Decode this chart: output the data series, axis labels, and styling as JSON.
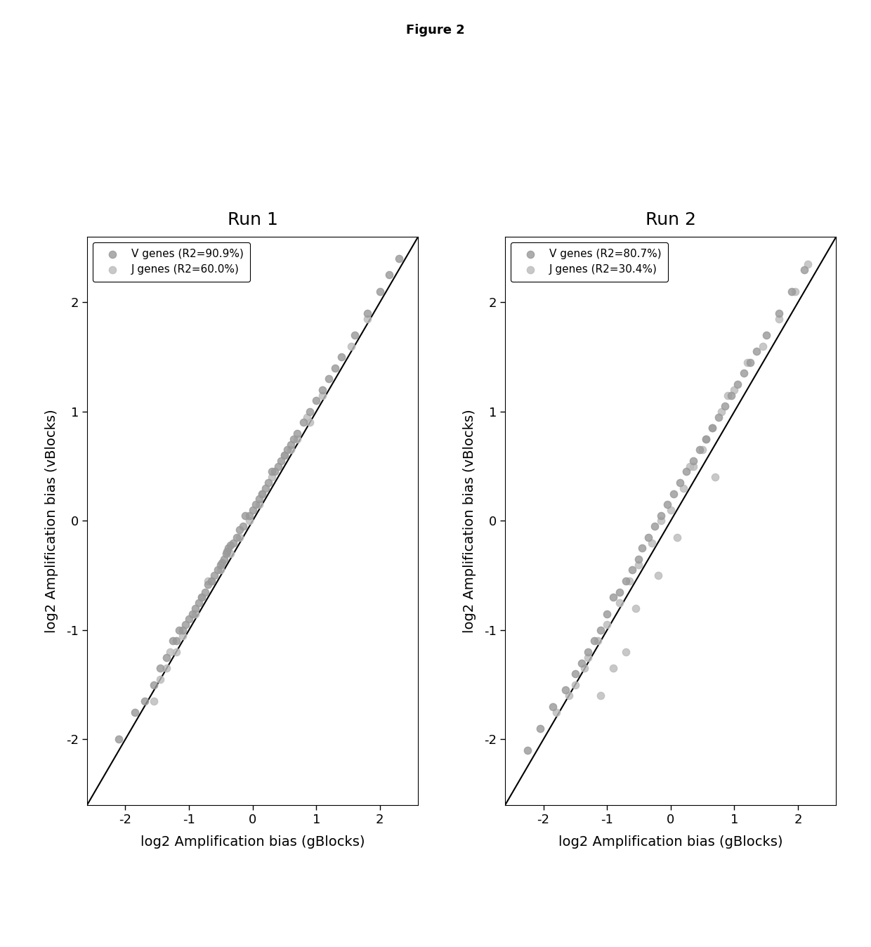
{
  "figure_title": "Figure 2",
  "subplot_titles": [
    "Run 1",
    "Run 2"
  ],
  "xlabel": "log2 Amplification bias (gBlocks)",
  "ylabel": "log2 Amplification bias (vBlocks)",
  "xlim": [
    -2.6,
    2.6
  ],
  "ylim": [
    -2.6,
    2.6
  ],
  "xticks": [
    -2,
    -1,
    0,
    1,
    2
  ],
  "yticks": [
    -2,
    -1,
    0,
    1,
    2
  ],
  "legend1": [
    "V genes (R2=90.9%)",
    "J genes (R2=60.0%)"
  ],
  "legend2": [
    "V genes (R2=80.7%)",
    "J genes (R2=30.4%)"
  ],
  "v_color": "#999999",
  "j_color": "#bbbbbb",
  "background_color": "#ffffff",
  "plot_bg_color": "#ffffff",
  "run1_v_x": [
    -2.1,
    -1.85,
    -1.7,
    -1.55,
    -1.45,
    -1.35,
    -1.25,
    -1.2,
    -1.15,
    -1.1,
    -1.05,
    -1.0,
    -0.95,
    -0.9,
    -0.85,
    -0.8,
    -0.75,
    -0.7,
    -0.65,
    -0.6,
    -0.55,
    -0.5,
    -0.48,
    -0.45,
    -0.42,
    -0.4,
    -0.38,
    -0.35,
    -0.3,
    -0.25,
    -0.2,
    -0.15,
    -0.12,
    -0.05,
    0.0,
    0.05,
    0.1,
    0.15,
    0.2,
    0.25,
    0.3,
    0.35,
    0.4,
    0.45,
    0.5,
    0.55,
    0.6,
    0.65,
    0.7,
    0.8,
    0.9,
    1.0,
    1.1,
    1.2,
    1.3,
    1.4,
    1.6,
    1.8,
    2.0,
    2.15,
    2.3
  ],
  "run1_v_y": [
    -2.0,
    -1.75,
    -1.65,
    -1.5,
    -1.35,
    -1.25,
    -1.1,
    -1.1,
    -1.0,
    -1.0,
    -0.95,
    -0.9,
    -0.85,
    -0.8,
    -0.75,
    -0.7,
    -0.65,
    -0.58,
    -0.55,
    -0.5,
    -0.45,
    -0.4,
    -0.38,
    -0.35,
    -0.3,
    -0.28,
    -0.25,
    -0.22,
    -0.2,
    -0.15,
    -0.08,
    -0.05,
    0.05,
    0.05,
    0.1,
    0.15,
    0.2,
    0.25,
    0.3,
    0.35,
    0.45,
    0.45,
    0.5,
    0.55,
    0.6,
    0.65,
    0.7,
    0.75,
    0.8,
    0.9,
    1.0,
    1.1,
    1.2,
    1.3,
    1.4,
    1.5,
    1.7,
    1.9,
    2.1,
    2.25,
    2.4
  ],
  "run1_j_x": [
    -1.55,
    -1.45,
    -1.35,
    -1.2,
    -1.1,
    -0.9,
    -0.8,
    -0.65,
    -0.5,
    -0.35,
    -0.2,
    -0.05,
    0.1,
    0.3,
    0.5,
    0.7,
    0.85,
    0.9,
    1.1,
    1.55,
    1.8,
    -1.3,
    -0.7,
    0.15,
    0.6
  ],
  "run1_j_y": [
    -1.65,
    -1.45,
    -1.35,
    -1.2,
    -1.05,
    -0.85,
    -0.7,
    -0.55,
    -0.45,
    -0.3,
    -0.15,
    0.0,
    0.15,
    0.4,
    0.6,
    0.75,
    0.95,
    0.9,
    1.15,
    1.6,
    1.85,
    -1.2,
    -0.55,
    0.25,
    0.65
  ],
  "run2_v_x": [
    -2.25,
    -2.05,
    -1.85,
    -1.65,
    -1.5,
    -1.4,
    -1.3,
    -1.2,
    -1.1,
    -1.0,
    -0.9,
    -0.8,
    -0.7,
    -0.6,
    -0.5,
    -0.45,
    -0.35,
    -0.25,
    -0.15,
    -0.05,
    0.05,
    0.15,
    0.25,
    0.35,
    0.45,
    0.55,
    0.65,
    0.75,
    0.85,
    0.95,
    1.05,
    1.15,
    1.25,
    1.35,
    1.5,
    1.7,
    1.9,
    2.1
  ],
  "run2_v_y": [
    -2.1,
    -1.9,
    -1.7,
    -1.55,
    -1.4,
    -1.3,
    -1.2,
    -1.1,
    -1.0,
    -0.85,
    -0.7,
    -0.65,
    -0.55,
    -0.45,
    -0.35,
    -0.25,
    -0.15,
    -0.05,
    0.05,
    0.15,
    0.25,
    0.35,
    0.45,
    0.55,
    0.65,
    0.75,
    0.85,
    0.95,
    1.05,
    1.15,
    1.25,
    1.35,
    1.45,
    1.55,
    1.7,
    1.9,
    2.1,
    2.3
  ],
  "run2_j_x": [
    -1.8,
    -1.6,
    -1.5,
    -1.35,
    -1.3,
    -1.15,
    -1.0,
    -0.8,
    -0.65,
    -0.5,
    -0.3,
    -0.15,
    0.0,
    0.2,
    0.35,
    0.5,
    0.65,
    0.8,
    1.0,
    1.2,
    1.45,
    1.7,
    1.95,
    2.15,
    -0.7,
    -0.55,
    0.1,
    0.3,
    -0.2,
    0.55,
    0.9,
    -1.1,
    -0.9,
    0.7
  ],
  "run2_j_y": [
    -1.75,
    -1.6,
    -1.5,
    -1.35,
    -1.25,
    -1.1,
    -0.95,
    -0.75,
    -0.55,
    -0.4,
    -0.2,
    0.0,
    0.1,
    0.3,
    0.5,
    0.65,
    0.85,
    1.0,
    1.2,
    1.45,
    1.6,
    1.85,
    2.1,
    2.35,
    -1.2,
    -0.8,
    -0.15,
    0.5,
    -0.5,
    0.75,
    1.15,
    -1.6,
    -1.35,
    0.4
  ],
  "marker_size": 55,
  "marker_alpha": 0.8,
  "title_fontsize": 13,
  "subplot_title_fontsize": 18,
  "axis_label_fontsize": 14,
  "tick_fontsize": 13,
  "legend_fontsize": 11
}
